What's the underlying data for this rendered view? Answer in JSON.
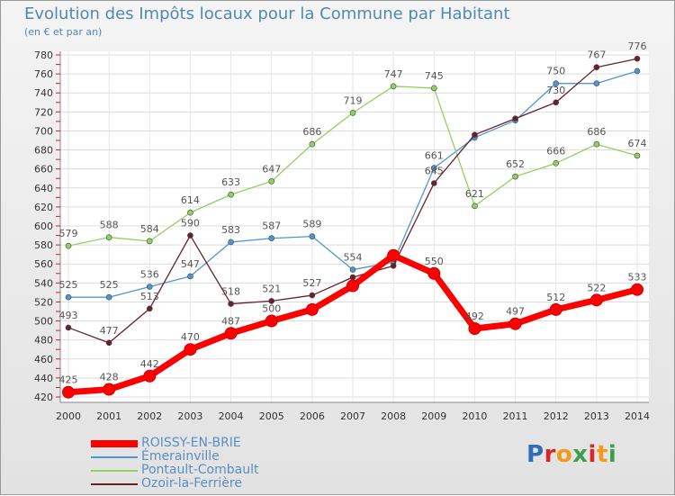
{
  "header": {
    "title": "Evolution des Impôts locaux pour la Commune par Habitant",
    "subtitle": "(en € et par an)"
  },
  "logo": {
    "text": "Proxiti",
    "letter_colors": [
      "#2e6fb8",
      "#d8262b",
      "#f29b1b",
      "#3aa14a",
      "#d8262b",
      "#f29b1b",
      "#3aa14a"
    ]
  },
  "chart_data": {
    "type": "line",
    "title": "Evolution des Impôts locaux pour la Commune par Habitant",
    "subtitle": "(en € et par an)",
    "xlabel": "",
    "ylabel": "",
    "x": [
      2000,
      2001,
      2002,
      2003,
      2004,
      2005,
      2006,
      2007,
      2008,
      2009,
      2010,
      2011,
      2012,
      2013,
      2014
    ],
    "ylim": [
      420,
      780
    ],
    "ytick_step": 20,
    "grid": true,
    "legend_position": "bottom-left",
    "series": [
      {
        "name": "ROISSY-EN-BRIE",
        "color": "#ff0000",
        "highlight": true,
        "values": [
          425,
          428,
          442,
          470,
          487,
          500,
          512,
          537,
          569,
          550,
          492,
          497,
          512,
          522,
          533
        ],
        "labels": [
          "425",
          "428",
          "442",
          "470",
          "487",
          "500",
          "",
          "",
          "",
          "550",
          "492",
          "497",
          "512",
          "522",
          "533"
        ]
      },
      {
        "name": "Émerainville",
        "color": "#4f96d2",
        "highlight": false,
        "values": [
          525,
          525,
          536,
          547,
          583,
          587,
          589,
          554,
          562,
          661,
          693,
          711,
          750,
          750,
          763
        ],
        "labels": [
          "525",
          "525",
          "536",
          "547",
          "583",
          "587",
          "589",
          "554",
          "",
          "661",
          "",
          "",
          "750",
          "",
          ""
        ]
      },
      {
        "name": "Pontault-Combault",
        "color": "#8fd25f",
        "highlight": false,
        "values": [
          579,
          588,
          584,
          614,
          633,
          647,
          686,
          719,
          747,
          745,
          621,
          652,
          666,
          686,
          674
        ],
        "labels": [
          "579",
          "588",
          "584",
          "614",
          "633",
          "647",
          "686",
          "719",
          "747",
          "745",
          "621",
          "652",
          "666",
          "686",
          "674"
        ]
      },
      {
        "name": "Ozoir-la-Ferrière",
        "color": "#6b1f28",
        "highlight": false,
        "values": [
          493,
          477,
          513,
          590,
          518,
          521,
          527,
          546,
          558,
          645,
          696,
          713,
          730,
          767,
          776
        ],
        "labels": [
          "493",
          "477",
          "513",
          "590",
          "518",
          "521",
          "527",
          "",
          "",
          "645",
          "",
          "",
          "730",
          "767",
          "776"
        ]
      }
    ]
  }
}
